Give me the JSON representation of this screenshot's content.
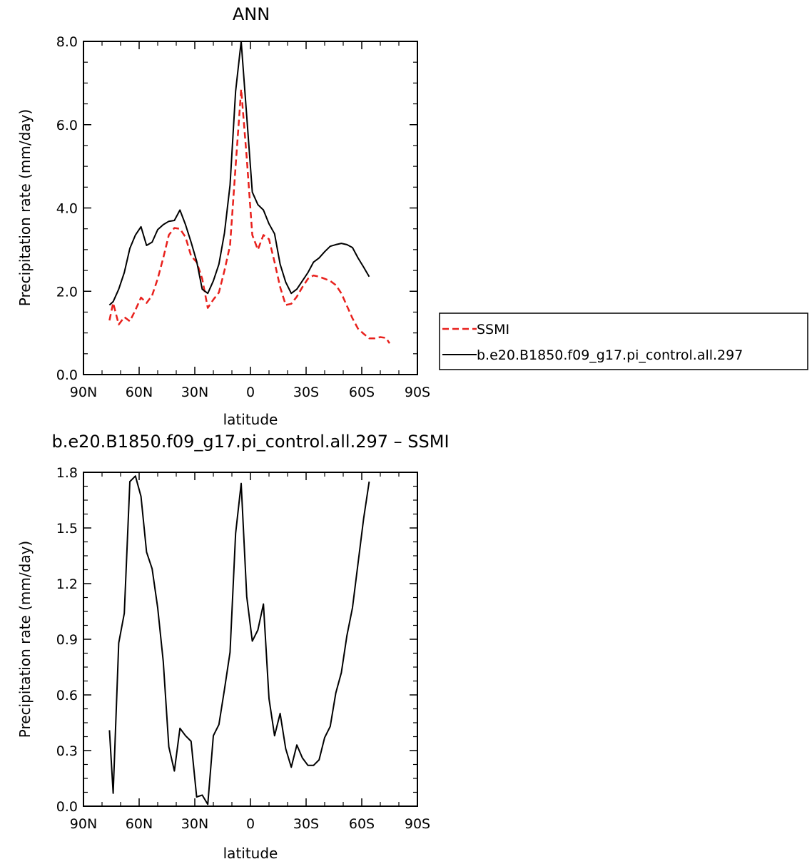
{
  "chart_data": [
    {
      "type": "line",
      "title": "ANN",
      "xlabel": "latitude",
      "ylabel": "Precipitation rate (mm/day)",
      "xlim": [
        90,
        -90
      ],
      "ylim": [
        0,
        8
      ],
      "x_ticks": [
        {
          "value": 90,
          "label": "90N"
        },
        {
          "value": 60,
          "label": "60N"
        },
        {
          "value": 30,
          "label": "30N"
        },
        {
          "value": 0,
          "label": "0"
        },
        {
          "value": -30,
          "label": "30S"
        },
        {
          "value": -60,
          "label": "60S"
        },
        {
          "value": -90,
          "label": "90S"
        }
      ],
      "y_ticks": [
        {
          "value": 0,
          "label": "0.0"
        },
        {
          "value": 2,
          "label": "2.0"
        },
        {
          "value": 4,
          "label": "4.0"
        },
        {
          "value": 6,
          "label": "6.0"
        },
        {
          "value": 8,
          "label": "8.0"
        }
      ],
      "grid": false,
      "legend_position": "right",
      "series": [
        {
          "name": "SSMI",
          "color": "#e8201c",
          "dash": "dashed",
          "x": [
            76,
            74,
            71,
            68,
            65,
            62,
            59,
            56,
            53,
            50,
            47,
            44,
            41,
            38,
            35,
            32,
            29,
            26,
            23,
            20,
            17,
            14,
            11,
            8,
            5,
            2,
            -1,
            -4,
            -7,
            -10,
            -13,
            -16,
            -19,
            -22,
            -25,
            -28,
            -31,
            -34,
            -37,
            -40,
            -43,
            -46,
            -49,
            -52,
            -55,
            -58,
            -61,
            -64,
            -67,
            -70,
            -73,
            -75
          ],
          "y": [
            1.3,
            1.72,
            1.2,
            1.38,
            1.28,
            1.55,
            1.85,
            1.72,
            1.9,
            2.3,
            2.8,
            3.35,
            3.52,
            3.5,
            3.3,
            2.85,
            2.7,
            2.3,
            1.6,
            1.8,
            1.97,
            2.5,
            3.1,
            5.0,
            6.85,
            5.2,
            3.35,
            3.0,
            3.35,
            3.25,
            2.7,
            2.1,
            1.67,
            1.7,
            1.87,
            2.1,
            2.3,
            2.38,
            2.35,
            2.3,
            2.25,
            2.15,
            1.95,
            1.65,
            1.35,
            1.1,
            0.98,
            0.87,
            0.87,
            0.9,
            0.88,
            0.75
          ]
        },
        {
          "name": "b.e20.B1850.f09_g17.pi_control.all.297",
          "color": "#000000",
          "dash": "solid",
          "x": [
            76,
            74,
            71,
            68,
            65,
            62,
            59,
            56,
            53,
            50,
            47,
            44,
            41,
            38,
            35,
            32,
            29,
            26,
            23,
            20,
            17,
            14,
            11,
            8,
            5,
            2,
            -1,
            -4,
            -7,
            -10,
            -13,
            -16,
            -19,
            -22,
            -25,
            -28,
            -31,
            -34,
            -37,
            -40,
            -43,
            -46,
            -49,
            -52,
            -55,
            -58,
            -61,
            -64
          ],
          "y": [
            1.67,
            1.75,
            2.05,
            2.45,
            3.03,
            3.35,
            3.55,
            3.1,
            3.18,
            3.48,
            3.6,
            3.68,
            3.7,
            3.95,
            3.6,
            3.18,
            2.72,
            2.05,
            1.95,
            2.25,
            2.65,
            3.4,
            4.55,
            6.8,
            8.0,
            6.2,
            4.38,
            4.08,
            3.95,
            3.62,
            3.38,
            2.65,
            2.22,
            1.95,
            2.05,
            2.25,
            2.45,
            2.7,
            2.8,
            2.95,
            3.08,
            3.12,
            3.15,
            3.12,
            3.05,
            2.8,
            2.58,
            2.35
          ]
        }
      ]
    },
    {
      "type": "line",
      "title": "b.e20.B1850.f09_g17.pi_control.all.297 – SSMI",
      "xlabel": "latitude",
      "ylabel": "Precipitation rate (mm/day)",
      "xlim": [
        90,
        -90
      ],
      "ylim": [
        0,
        1.8
      ],
      "x_ticks": [
        {
          "value": 90,
          "label": "90N"
        },
        {
          "value": 60,
          "label": "60N"
        },
        {
          "value": 30,
          "label": "30N"
        },
        {
          "value": 0,
          "label": "0"
        },
        {
          "value": -30,
          "label": "30S"
        },
        {
          "value": -60,
          "label": "60S"
        },
        {
          "value": -90,
          "label": "90S"
        }
      ],
      "y_ticks": [
        {
          "value": 0,
          "label": "0.0"
        },
        {
          "value": 0.3,
          "label": "0.3"
        },
        {
          "value": 0.6,
          "label": "0.6"
        },
        {
          "value": 0.9,
          "label": "0.9"
        },
        {
          "value": 1.2,
          "label": "1.2"
        },
        {
          "value": 1.5,
          "label": "1.5"
        },
        {
          "value": 1.8,
          "label": "1.8"
        }
      ],
      "grid": false,
      "series": [
        {
          "color": "#000000",
          "dash": "solid",
          "x": [
            76,
            74,
            71,
            68,
            65,
            62,
            59,
            56,
            53,
            50,
            47,
            44,
            41,
            38,
            35,
            32,
            29,
            26,
            23,
            20,
            17,
            14,
            11,
            8,
            5,
            2,
            -1,
            -4,
            -7,
            -10,
            -13,
            -16,
            -19,
            -22,
            -25,
            -28,
            -31,
            -34,
            -37,
            -40,
            -43,
            -46,
            -49,
            -52,
            -55,
            -58,
            -61,
            -64
          ],
          "y": [
            0.41,
            0.07,
            0.88,
            1.04,
            1.75,
            1.78,
            1.67,
            1.37,
            1.28,
            1.07,
            0.78,
            0.32,
            0.19,
            0.42,
            0.38,
            0.35,
            0.05,
            0.06,
            0.01,
            0.38,
            0.44,
            0.63,
            0.83,
            1.47,
            1.74,
            1.13,
            0.89,
            0.95,
            1.09,
            0.58,
            0.38,
            0.5,
            0.31,
            0.21,
            0.33,
            0.26,
            0.22,
            0.22,
            0.25,
            0.37,
            0.43,
            0.61,
            0.72,
            0.92,
            1.07,
            1.31,
            1.55,
            1.75
          ]
        }
      ]
    }
  ]
}
